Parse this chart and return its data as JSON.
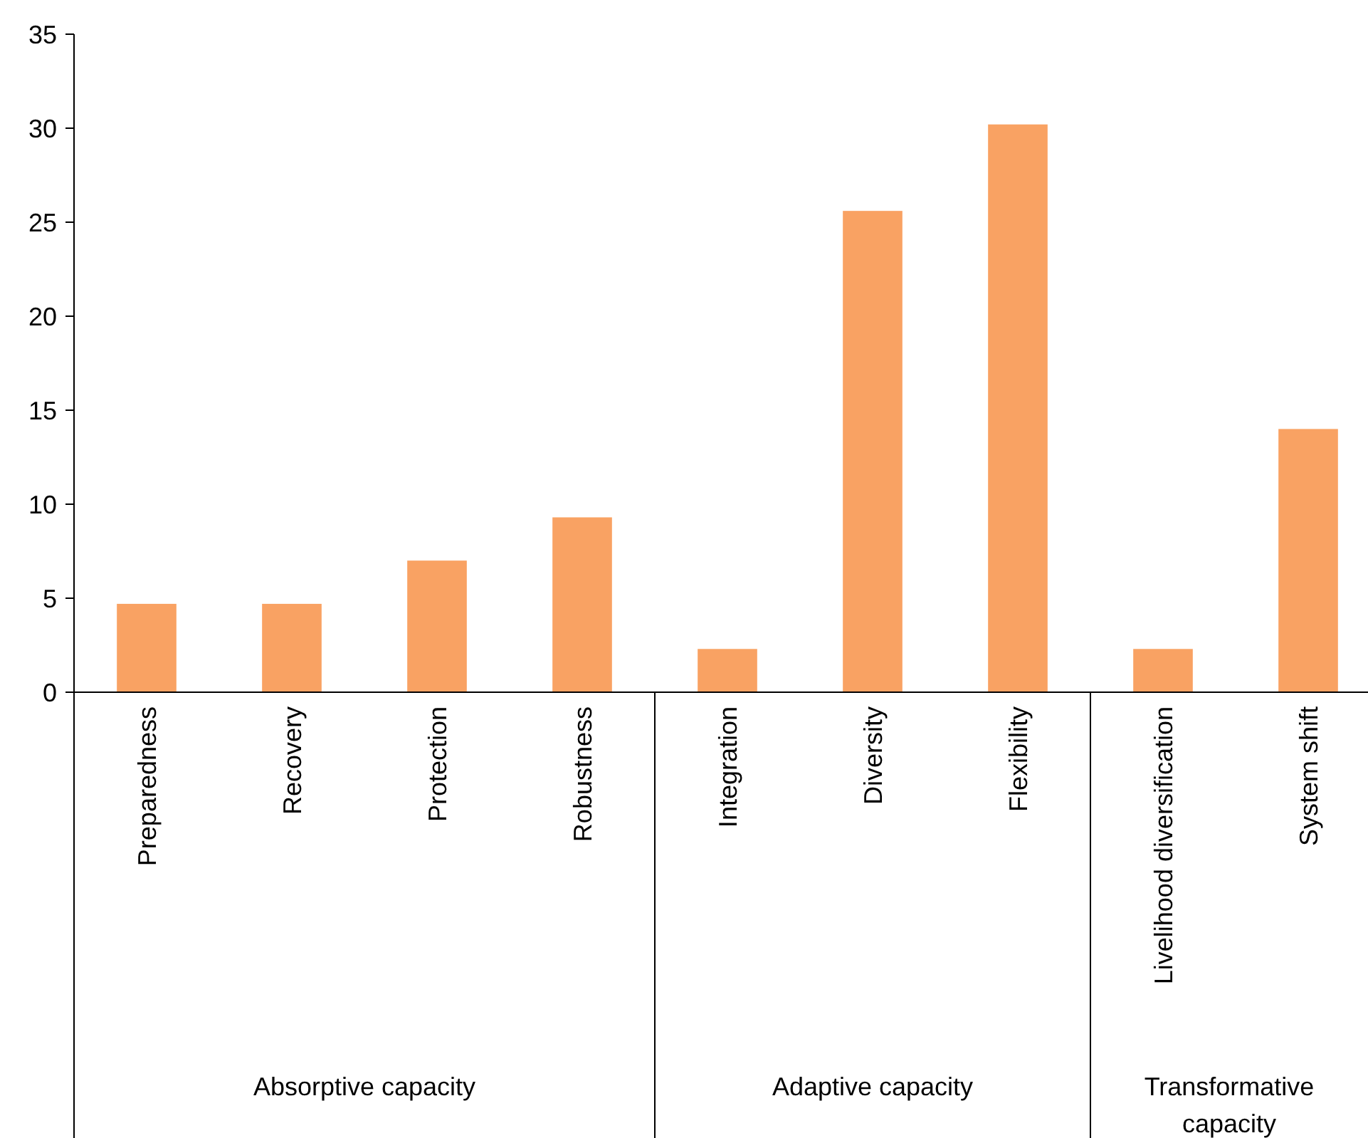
{
  "chart_data": {
    "type": "bar",
    "categories": [
      "Preparedness",
      "Recovery",
      "Protection",
      "Robustness",
      "Integration",
      "Diversity",
      "Flexibility",
      "Livelihood diversification",
      "System shift"
    ],
    "values": [
      4.7,
      4.7,
      7.0,
      9.3,
      2.3,
      25.6,
      30.2,
      2.3,
      14.0
    ],
    "color": "#f9a263",
    "ylim": [
      0,
      35
    ],
    "yticks": [
      0,
      5,
      10,
      15,
      20,
      25,
      30,
      35
    ],
    "annotations": [
      "Absorptive capacity",
      "Adaptive capacity",
      "Transformative capacity"
    ]
  }
}
